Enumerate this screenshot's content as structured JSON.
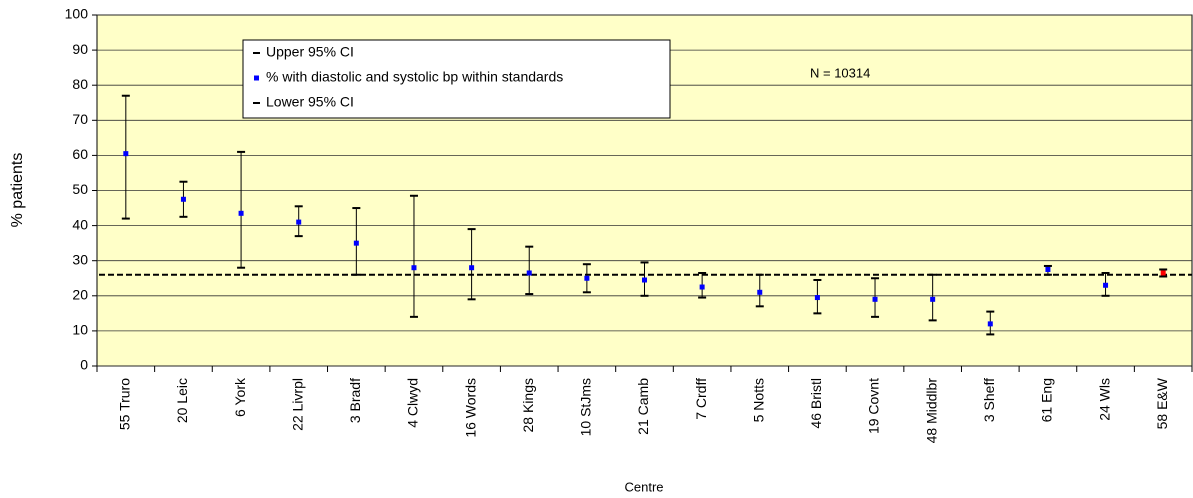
{
  "chart_data": {
    "type": "errorbar",
    "x_label": "Centre",
    "y_label": "% patients",
    "annotation": "N = 10314",
    "categories": [
      "55 Truro",
      "20 Leic",
      "6 York",
      "22 Livrpl",
      "3 Bradf",
      "4 Clwyd",
      "16 Words",
      "28 Kings",
      "10 StJms",
      "21 Camb",
      "7 Crdff",
      "5 Notts",
      "46 Bristl",
      "19 Covnt",
      "48 Middlbr",
      "3 Sheff",
      "61 Eng",
      "24 Wls",
      "58 E&W"
    ],
    "series": [
      {
        "name": "Upper 95% CI",
        "role": "upper",
        "color": "#000000",
        "values": [
          77,
          52.5,
          61,
          45.5,
          45,
          48.5,
          39,
          34,
          29,
          29.5,
          26.5,
          26,
          24.5,
          25,
          26,
          15.5,
          28.5,
          26.5,
          27.5
        ]
      },
      {
        "name": "% with diastolic and systolic bp within standards",
        "role": "value",
        "color": "#0000FF",
        "colors": [
          "#0000FF",
          "#0000FF",
          "#0000FF",
          "#0000FF",
          "#0000FF",
          "#0000FF",
          "#0000FF",
          "#0000FF",
          "#0000FF",
          "#0000FF",
          "#0000FF",
          "#0000FF",
          "#0000FF",
          "#0000FF",
          "#0000FF",
          "#0000FF",
          "#0000FF",
          "#0000FF",
          "#FF0000"
        ],
        "values": [
          60.5,
          47.5,
          43.5,
          41,
          35,
          28,
          28,
          26.5,
          25,
          24.5,
          22.5,
          21,
          19.5,
          19,
          19,
          12,
          27.5,
          23,
          26.5
        ]
      },
      {
        "name": "Lower 95% CI",
        "role": "lower",
        "color": "#000000",
        "values": [
          42,
          42.5,
          28,
          37,
          26,
          14,
          19,
          20.5,
          21,
          20,
          19.5,
          17,
          15,
          14,
          13,
          9,
          26,
          20,
          25.5
        ]
      }
    ],
    "reference_line": 26,
    "ylim": [
      0,
      100
    ],
    "yticks": [
      0,
      10,
      20,
      30,
      40,
      50,
      60,
      70,
      80,
      90,
      100
    ],
    "grid": true,
    "plot_background": "#FFFFC8"
  }
}
